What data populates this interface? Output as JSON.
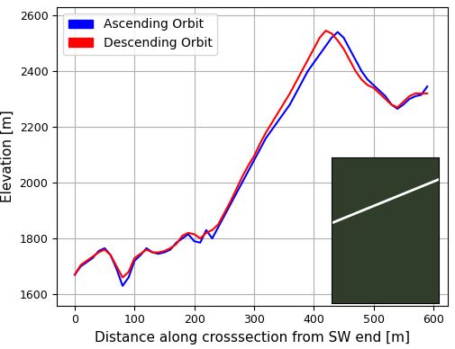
{
  "chart_data": {
    "type": "line",
    "xlabel": "Distance along crosssection from SW end [m]",
    "ylabel": "Elevation [m]",
    "x": [
      0,
      10,
      20,
      30,
      40,
      50,
      60,
      70,
      80,
      90,
      100,
      110,
      120,
      130,
      140,
      150,
      160,
      170,
      180,
      190,
      200,
      210,
      220,
      230,
      240,
      250,
      260,
      270,
      280,
      290,
      300,
      310,
      320,
      330,
      340,
      350,
      360,
      370,
      380,
      390,
      400,
      410,
      420,
      430,
      440,
      450,
      460,
      470,
      480,
      490,
      500,
      510,
      520,
      530,
      540,
      550,
      560,
      570,
      580,
      590
    ],
    "series": [
      {
        "name": "Ascending Orbit",
        "color": "#0000ff",
        "values": [
          1670,
          1700,
          1715,
          1730,
          1755,
          1765,
          1740,
          1690,
          1630,
          1660,
          1720,
          1740,
          1765,
          1750,
          1745,
          1750,
          1760,
          1785,
          1800,
          1815,
          1790,
          1785,
          1830,
          1800,
          1840,
          1880,
          1920,
          1960,
          2000,
          2040,
          2080,
          2120,
          2160,
          2190,
          2220,
          2250,
          2280,
          2320,
          2360,
          2400,
          2430,
          2460,
          2490,
          2520,
          2540,
          2520,
          2480,
          2440,
          2400,
          2370,
          2350,
          2330,
          2310,
          2280,
          2265,
          2280,
          2300,
          2310,
          2315,
          2345
        ]
      },
      {
        "name": "Descending Orbit",
        "color": "#ff0000",
        "values": [
          1670,
          1705,
          1720,
          1735,
          1750,
          1760,
          1740,
          1700,
          1660,
          1680,
          1730,
          1745,
          1760,
          1750,
          1750,
          1755,
          1765,
          1780,
          1810,
          1820,
          1815,
          1800,
          1820,
          1830,
          1850,
          1890,
          1930,
          1975,
          2020,
          2060,
          2095,
          2140,
          2180,
          2215,
          2250,
          2285,
          2320,
          2360,
          2400,
          2440,
          2480,
          2520,
          2545,
          2535,
          2510,
          2480,
          2440,
          2400,
          2370,
          2350,
          2340,
          2320,
          2300,
          2280,
          2270,
          2290,
          2310,
          2320,
          2320,
          2320
        ]
      }
    ],
    "xlim": [
      -30,
      625
    ],
    "xticks": [
      0,
      100,
      200,
      300,
      400,
      500,
      600
    ],
    "ylim": [
      1560,
      2630
    ],
    "yticks": [
      1600,
      1800,
      2000,
      2200,
      2400,
      2600
    ],
    "grid": true,
    "legend": "upper left"
  }
}
